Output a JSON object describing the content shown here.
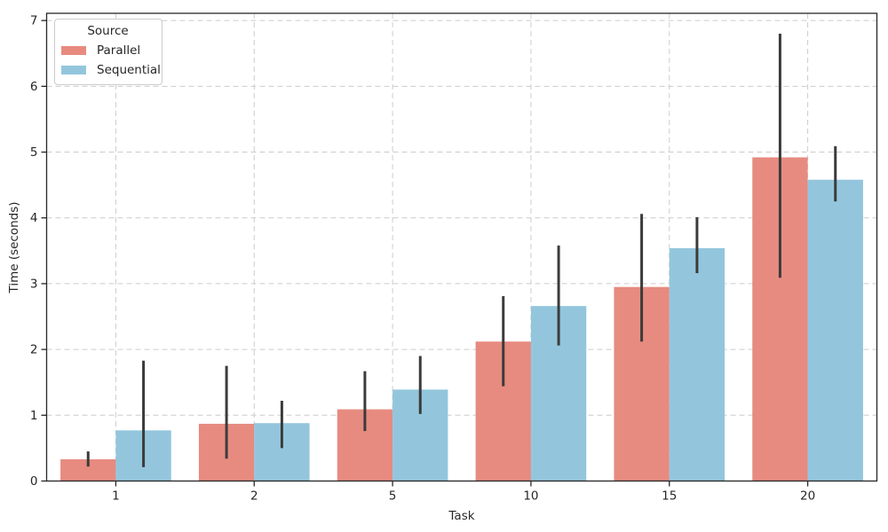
{
  "chart_data": {
    "type": "bar",
    "title": "",
    "xlabel": "Task",
    "ylabel": "Time (seconds)",
    "categories": [
      "1",
      "2",
      "5",
      "10",
      "15",
      "20"
    ],
    "series": [
      {
        "name": "Parallel",
        "color": "#e78b80",
        "values": [
          0.33,
          0.87,
          1.09,
          2.12,
          2.95,
          4.92
        ],
        "error_low": [
          0.22,
          0.34,
          0.76,
          1.44,
          2.12,
          3.09
        ],
        "error_high": [
          0.45,
          1.75,
          1.67,
          2.81,
          4.06,
          6.8
        ]
      },
      {
        "name": "Sequential",
        "color": "#93c6dd",
        "values": [
          0.77,
          0.88,
          1.39,
          2.66,
          3.54,
          4.58
        ],
        "error_low": [
          0.21,
          0.5,
          1.02,
          2.06,
          3.16,
          4.25
        ],
        "error_high": [
          1.83,
          1.22,
          1.9,
          3.58,
          4.01,
          5.09
        ]
      }
    ],
    "ylim": [
      0,
      7.11
    ],
    "yticks": [
      0,
      1,
      2,
      3,
      4,
      5,
      6,
      7
    ],
    "grid": {
      "style": "dashed",
      "axes": "both",
      "color": "#cccccc"
    },
    "error_bar_color": "#3b3b3b",
    "spine_color": "#262626",
    "legend": {
      "title": "Source",
      "position": "upper-left"
    }
  }
}
